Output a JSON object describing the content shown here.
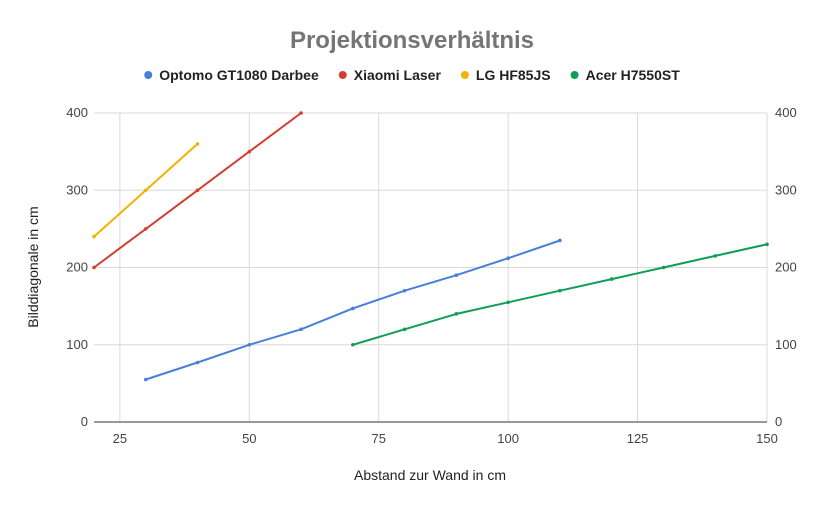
{
  "chart_data": {
    "type": "line",
    "title": "Projektionsverhältnis",
    "xlabel": "Abstand zur Wand in cm",
    "ylabel": "Bilddiagonale in cm",
    "xlim": [
      20,
      150
    ],
    "ylim": [
      0,
      400
    ],
    "x_ticks": [
      25,
      50,
      75,
      100,
      125,
      150
    ],
    "y_ticks": [
      0,
      100,
      200,
      300,
      400
    ],
    "grid": true,
    "legend_position": "top",
    "series": [
      {
        "name": "Optomo GT1080 Darbee",
        "color": "#4a7fd9",
        "x": [
          30,
          40,
          50,
          60,
          70,
          80,
          90,
          100,
          110
        ],
        "y": [
          55,
          77,
          100,
          120,
          147,
          170,
          190,
          212,
          235
        ]
      },
      {
        "name": "Xiaomi Laser",
        "color": "#d23f31",
        "x": [
          20,
          30,
          40,
          50,
          60
        ],
        "y": [
          200,
          250,
          300,
          350,
          400
        ]
      },
      {
        "name": "LG HF85JS",
        "color": "#f2b300",
        "x": [
          20,
          30,
          40
        ],
        "y": [
          240,
          300,
          360
        ]
      },
      {
        "name": "Acer H7550ST",
        "color": "#0f9d58",
        "x": [
          70,
          80,
          90,
          100,
          110,
          120,
          130,
          140,
          150
        ],
        "y": [
          100,
          120,
          140,
          155,
          170,
          185,
          200,
          215,
          230
        ]
      }
    ]
  }
}
